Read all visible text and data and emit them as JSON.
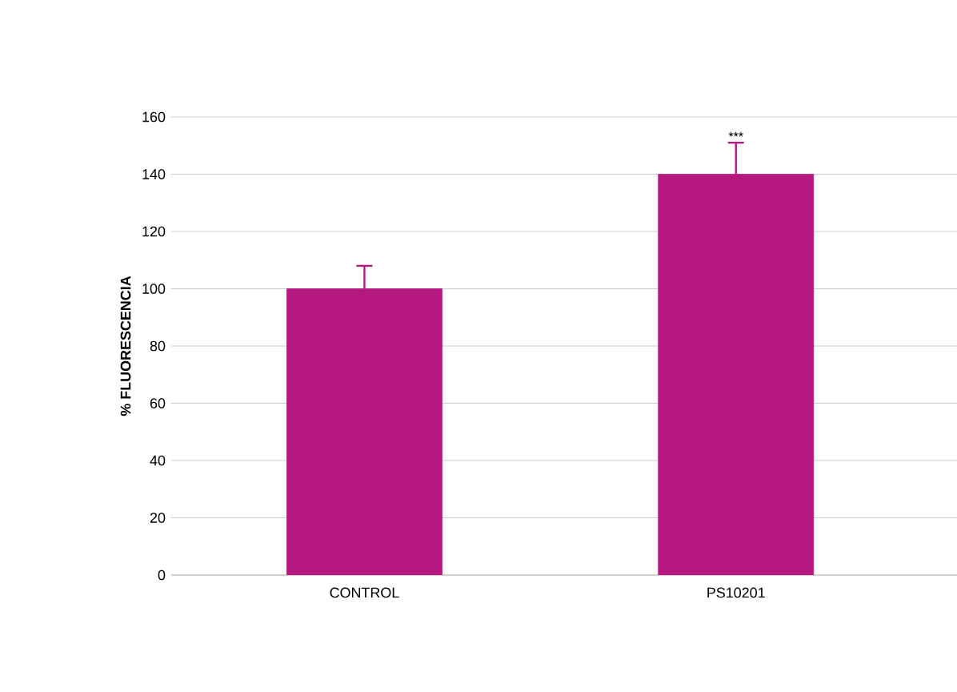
{
  "chart_data": {
    "type": "bar",
    "ylabel": "% FLUORESCENCIA",
    "categories": [
      "CONTROL",
      "PS10201"
    ],
    "values": [
      100,
      140
    ],
    "errors": [
      8,
      11
    ],
    "color": "#b5197f",
    "ylim": [
      0,
      160
    ],
    "yticks": [
      0,
      20,
      40,
      60,
      80,
      100,
      120,
      140,
      160
    ],
    "grid": "y",
    "annotations": [
      {
        "text": "***",
        "x": "PS10201",
        "y": 151
      }
    ]
  }
}
